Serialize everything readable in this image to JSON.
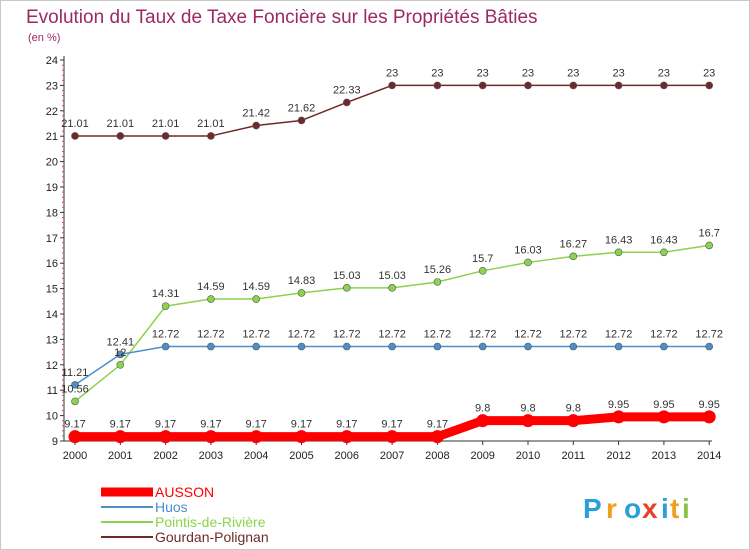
{
  "chart_data": {
    "type": "line",
    "title": "Evolution du Taux de Taxe Foncière sur les Propriétés Bâties",
    "subtitle": "(en %)",
    "x": [
      "2000",
      "2001",
      "2002",
      "2003",
      "2004",
      "2005",
      "2006",
      "2007",
      "2008",
      "2009",
      "2010",
      "2011",
      "2012",
      "2013",
      "2014"
    ],
    "ylim": [
      9,
      24
    ],
    "yticks": [
      "9",
      "10",
      "11",
      "12",
      "13",
      "14",
      "15",
      "16",
      "17",
      "18",
      "19",
      "20",
      "21",
      "22",
      "23",
      "24"
    ],
    "series": [
      {
        "name": "AUSSON",
        "color": "#ff0000",
        "values": [
          9.17,
          9.17,
          9.17,
          9.17,
          9.17,
          9.17,
          9.17,
          9.17,
          9.17,
          9.8,
          9.8,
          9.8,
          9.95,
          9.95,
          9.95
        ],
        "labels": [
          "9.17",
          "9.17",
          "9.17",
          "9.17",
          "9.17",
          "9.17",
          "9.17",
          "9.17",
          "9.17",
          "9.8",
          "9.8",
          "9.8",
          "9.95",
          "9.95",
          "9.95"
        ]
      },
      {
        "name": "Huos",
        "color": "#4a8fc9",
        "values": [
          11.21,
          12.41,
          12.72,
          12.72,
          12.72,
          12.72,
          12.72,
          12.72,
          12.72,
          12.72,
          12.72,
          12.72,
          12.72,
          12.72,
          12.72
        ],
        "labels": [
          "11.21",
          "12.41",
          "12.72",
          "12.72",
          "12.72",
          "12.72",
          "12.72",
          "12.72",
          "12.72",
          "12.72",
          "12.72",
          "12.72",
          "12.72",
          "12.72",
          "12.72"
        ]
      },
      {
        "name": "Pointis-de-Rivière",
        "color": "#8bd34c",
        "values": [
          10.56,
          12,
          14.31,
          14.59,
          14.59,
          14.83,
          15.03,
          15.03,
          15.26,
          15.7,
          16.03,
          16.27,
          16.43,
          16.43,
          16.7
        ],
        "labels": [
          "10.56",
          "12",
          "14.31",
          "14.59",
          "14.59",
          "14.83",
          "15.03",
          "15.03",
          "15.26",
          "15.7",
          "16.03",
          "16.27",
          "16.43",
          "16.43",
          "16.7"
        ]
      },
      {
        "name": "Gourdan-Polignan",
        "color": "#6e2a2a",
        "values": [
          21.01,
          21.01,
          21.01,
          21.01,
          21.42,
          21.62,
          22.33,
          23,
          23,
          23,
          23,
          23,
          23,
          23,
          23
        ],
        "labels": [
          "21.01",
          "21.01",
          "21.01",
          "21.01",
          "21.42",
          "21.62",
          "22.33",
          "23",
          "23",
          "23",
          "23",
          "23",
          "23",
          "23",
          "23"
        ]
      }
    ],
    "legend": [
      "AUSSON",
      "Huos",
      "Pointis-de-Rivière",
      "Gourdan-Polignan"
    ],
    "grid": false
  },
  "logo": {
    "letters": [
      "P",
      "r",
      "o",
      "x",
      "i",
      "t",
      "i"
    ],
    "colors": [
      "#2aa0d8",
      "#f0a020",
      "#2aa0d8",
      "#e8402a",
      "#2aa0d8",
      "#f0a020",
      "#8bc34a"
    ]
  }
}
